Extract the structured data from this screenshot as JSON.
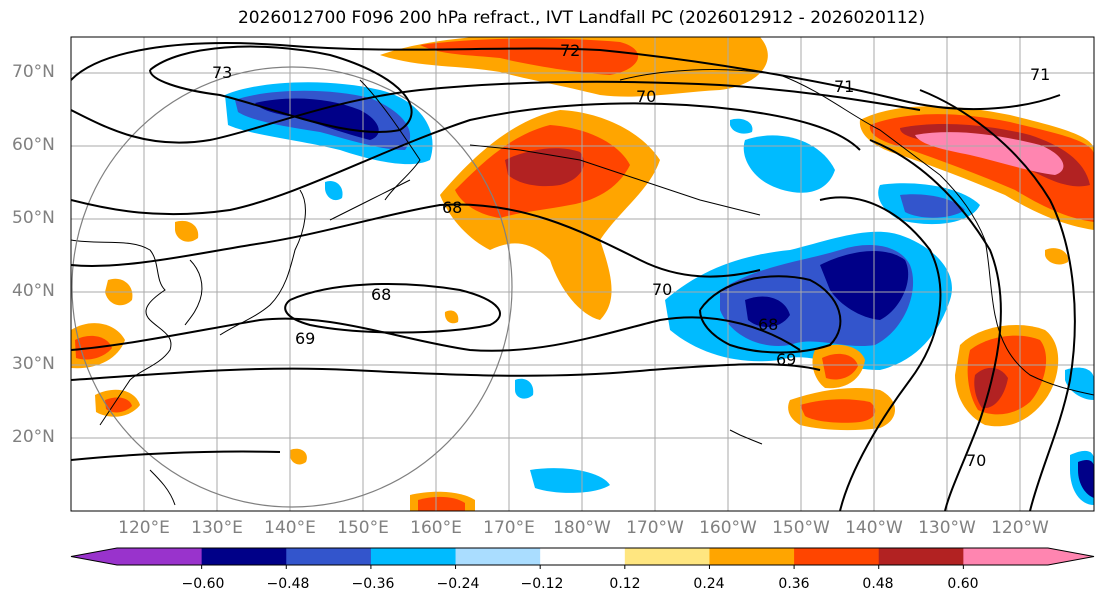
{
  "title": "2026012700 F096 200 hPa refract., IVT Landfall PC (2026012912 - 2026020112)",
  "lat_labels": [
    "70°N",
    "60°N",
    "50°N",
    "40°N",
    "30°N",
    "20°N"
  ],
  "lon_labels": [
    "120°E",
    "130°E",
    "140°E",
    "150°E",
    "160°E",
    "170°E",
    "180°W",
    "170°W",
    "160°W",
    "150°W",
    "140°W",
    "130°W",
    "120°W"
  ],
  "contour_labels": [
    "73",
    "72",
    "71",
    "70",
    "68",
    "68",
    "69",
    "70",
    "68",
    "69",
    "71",
    "70"
  ],
  "colorbar": {
    "tick_labels": [
      "−0.60",
      "−0.48",
      "−0.36",
      "−0.24",
      "−0.12",
      "0.12",
      "0.24",
      "0.36",
      "0.48",
      "0.60"
    ],
    "colors": [
      "#9933cc",
      "#000088",
      "#3355cc",
      "#00bbff",
      "#aaddff",
      "#ffffff",
      "#ffe680",
      "#ffa500",
      "#ff4500",
      "#b22222",
      "#ff85b0",
      "#ff85b0"
    ]
  },
  "chart_data": {
    "type": "map",
    "title": "2026012700 F096 200 hPa refract., IVT Landfall PC (2026012912 - 2026020112)",
    "lat_range": [
      10,
      75
    ],
    "lon_range_east": [
      110,
      250
    ],
    "contour_levels": [
      68,
      69,
      70,
      71,
      72,
      73
    ],
    "shading_levels": [
      -0.6,
      -0.48,
      -0.36,
      -0.24,
      -0.12,
      0.12,
      0.24,
      0.36,
      0.48,
      0.6
    ]
  }
}
